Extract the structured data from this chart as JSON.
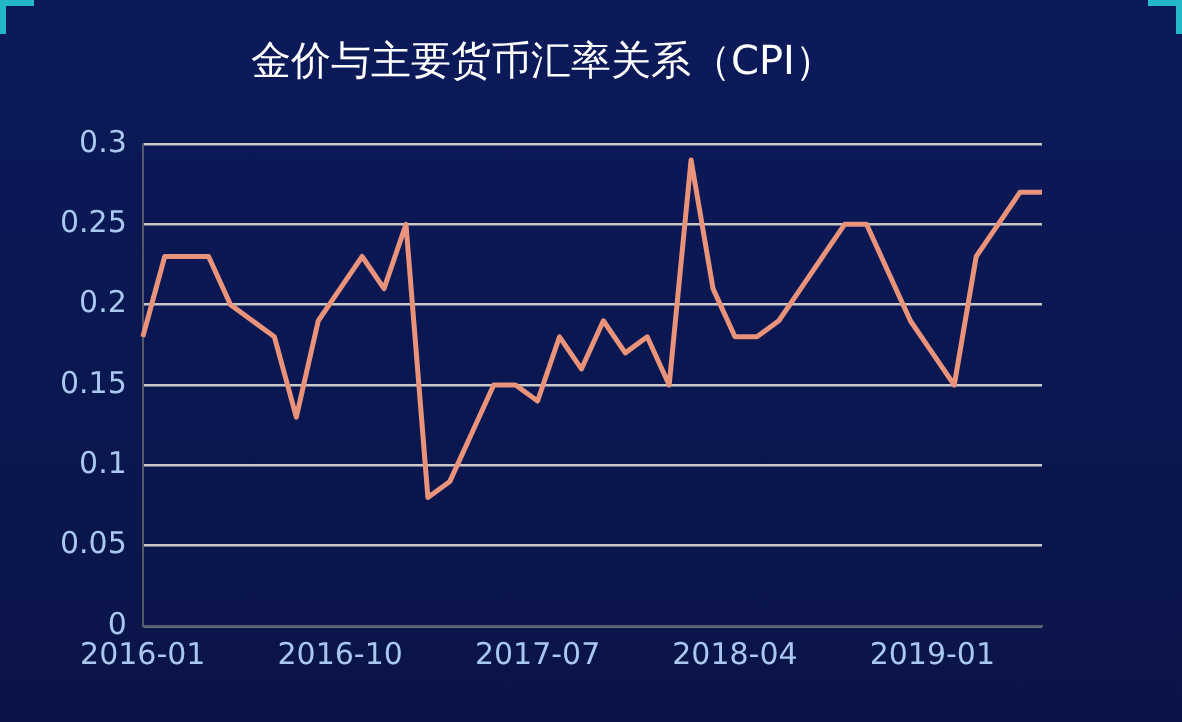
{
  "chart_data": {
    "type": "line",
    "title": "金价与主要货币汇率关系（CPI）",
    "categories": [
      "2016-01",
      null,
      null,
      null,
      null,
      null,
      null,
      null,
      null,
      "2016-10",
      null,
      null,
      null,
      null,
      null,
      null,
      null,
      null,
      "2017-07",
      null,
      null,
      null,
      null,
      null,
      null,
      null,
      null,
      "2018-04",
      null,
      null,
      null,
      null,
      null,
      null,
      null,
      null,
      "2019-01",
      null,
      null,
      null,
      null,
      null
    ],
    "series": [
      {
        "color": "#e8937a",
        "values": [
          0.18,
          0.23,
          0.23,
          0.23,
          0.2,
          0.19,
          0.18,
          0.13,
          0.19,
          0.21,
          0.23,
          0.21,
          0.25,
          0.08,
          0.09,
          0.12,
          0.15,
          0.15,
          0.14,
          0.18,
          0.16,
          0.19,
          0.17,
          0.18,
          0.15,
          0.29,
          0.21,
          0.18,
          0.18,
          0.19,
          0.21,
          0.23,
          0.25,
          0.25,
          0.22,
          0.19,
          0.17,
          0.15,
          0.23,
          0.25,
          0.27,
          0.27
        ]
      }
    ],
    "ylim": [
      0,
      0.3
    ],
    "yticks": [
      0,
      0.05,
      0.1,
      0.15,
      0.2,
      0.25,
      0.3
    ],
    "grid": "y",
    "legend": false,
    "marker": "none",
    "line_style": "solid"
  }
}
